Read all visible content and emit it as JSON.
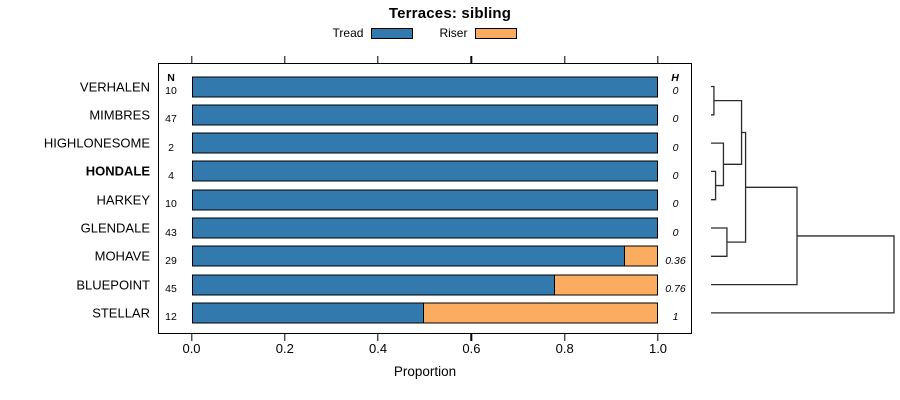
{
  "title": "Terraces: sibling",
  "legend": {
    "items": [
      {
        "label": "Tread",
        "color": "#3279AE"
      },
      {
        "label": "Riser",
        "color": "#FBAC60"
      }
    ]
  },
  "columns": {
    "n_header": "N",
    "h_header": "H"
  },
  "axis": {
    "label": "Proportion",
    "tick_labels": [
      "0.0",
      "0.2",
      "0.4",
      "0.6",
      "0.8",
      "1.0"
    ],
    "tick_values": [
      0,
      0.2,
      0.4,
      0.6,
      0.8,
      1.0
    ]
  },
  "chart_data": {
    "type": "bar",
    "orientation": "horizontal",
    "stacked": true,
    "title": "Terraces: sibling",
    "xlabel": "Proportion",
    "xlim": [
      0,
      1
    ],
    "grid": false,
    "legend_position": "top",
    "categories": [
      "VERHALEN",
      "MIMBRES",
      "HIGHLONESOME",
      "HONDALE",
      "HARKEY",
      "GLENDALE",
      "MOHAVE",
      "BLUEPOINT",
      "STELLAR"
    ],
    "emphasized_category": "HONDALE",
    "n_values": [
      10,
      47,
      2,
      4,
      10,
      43,
      29,
      45,
      12
    ],
    "h_values": [
      "0",
      "0",
      "0",
      "0",
      "0",
      "0",
      "0.36",
      "0.76",
      "1"
    ],
    "series": [
      {
        "name": "Tread",
        "color": "#3279AE",
        "values": [
          1,
          1,
          1,
          1,
          1,
          1,
          0.93,
          0.78,
          0.5
        ]
      },
      {
        "name": "Riser",
        "color": "#FBAC60",
        "values": [
          0,
          0,
          0,
          0,
          0,
          0,
          0.07,
          0.22,
          0.5
        ]
      }
    ],
    "dendrogram": {
      "side": "right",
      "leaves": [
        "VERHALEN",
        "MIMBRES",
        "HIGHLONESOME",
        "HONDALE",
        "HARKEY",
        "GLENDALE",
        "MOHAVE",
        "BLUEPOINT",
        "STELLAR"
      ],
      "merges": [
        {
          "a": "VERHALEN",
          "b": "MIMBRES",
          "height": 0.016
        },
        {
          "a": "HONDALE",
          "b": "HARKEY",
          "height": 0.025
        },
        {
          "a": "HIGHLONESOME",
          "b": "@1",
          "height": 0.068
        },
        {
          "a": "@0",
          "b": "@2",
          "height": 0.167
        },
        {
          "a": "GLENDALE",
          "b": "MOHAVE",
          "height": 0.087
        },
        {
          "a": "@3",
          "b": "@4",
          "height": 0.189
        },
        {
          "a": "@5",
          "b": "BLUEPOINT",
          "height": 0.47
        },
        {
          "a": "@6",
          "b": "STELLAR",
          "height": 1.0
        }
      ]
    }
  }
}
